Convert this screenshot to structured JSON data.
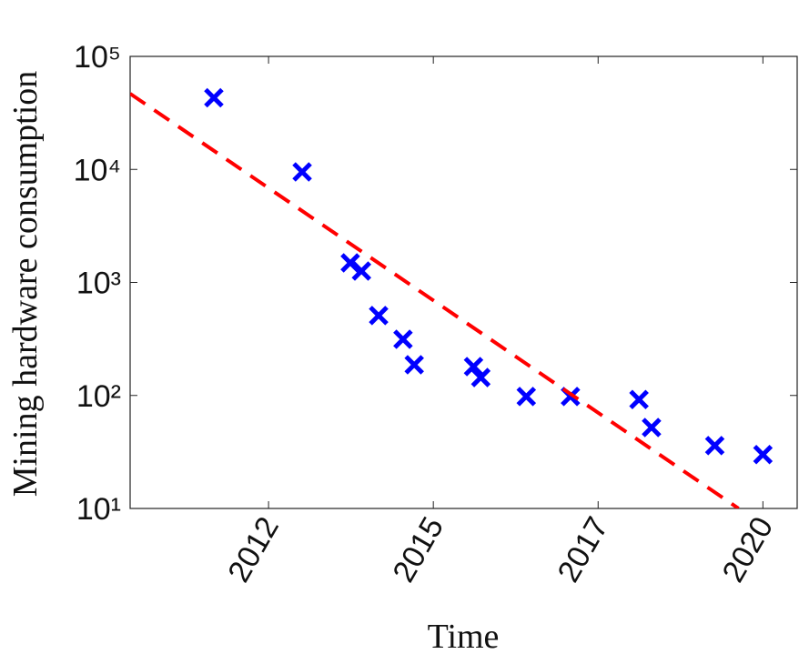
{
  "chart_data": {
    "type": "scatter",
    "x_label": "Time",
    "y_label": "Mining hardware consumption",
    "xlim": [
      2010.15,
      2020.27
    ],
    "xticks": [
      {
        "value": 2012.25,
        "label": "2012"
      },
      {
        "value": 2014.75,
        "label": "2015"
      },
      {
        "value": 2017.25,
        "label": "2017"
      },
      {
        "value": 2019.75,
        "label": "2020"
      }
    ],
    "ylim": [
      10,
      100000
    ],
    "yticks": [
      {
        "value": 10,
        "label": "10¹"
      },
      {
        "value": 100,
        "label": "10²"
      },
      {
        "value": 1000,
        "label": "10³"
      },
      {
        "value": 10000,
        "label": "10⁴"
      },
      {
        "value": 100000,
        "label": "10⁵"
      }
    ],
    "log_y": true,
    "series": [
      {
        "color": "#0000ff",
        "marker": "x",
        "x": [
          2011.42,
          2012.76,
          2013.49,
          2013.66,
          2013.92,
          2014.29,
          2014.46,
          2015.36,
          2015.47,
          2016.16,
          2016.83,
          2017.87,
          2018.06,
          2019.02,
          2019.75
        ],
        "values": [
          43000,
          9500,
          1490,
          1260,
          510,
          314,
          187,
          180,
          144,
          98,
          98,
          92,
          52,
          36,
          30
        ]
      },
      {
        "color": "#ff0000",
        "line_style": "dashed",
        "x": [
          2010.15,
          2019.38
        ],
        "values": [
          46800,
          10
        ]
      }
    ]
  }
}
